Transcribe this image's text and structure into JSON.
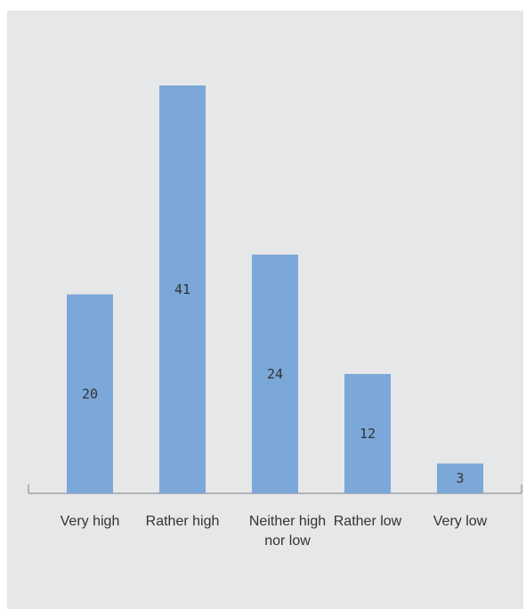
{
  "chart_data": {
    "type": "bar",
    "categories": [
      "Very high",
      "Rather high",
      "Neither high nor low",
      "Rather low",
      "Very low"
    ],
    "category_lines": [
      [
        "Very high"
      ],
      [
        "Rather high"
      ],
      [
        "Neither high",
        "nor low"
      ],
      [
        "Rather low"
      ],
      [
        "Very low"
      ]
    ],
    "values": [
      20,
      41,
      24,
      12,
      3
    ],
    "title": "",
    "xlabel": "",
    "ylabel": "",
    "ylim": [
      0,
      41
    ],
    "grid": false,
    "legend": "none",
    "bar_color": "#7ba7d9",
    "axis_color": "#7f7f7f",
    "background": "#e6e7e8"
  }
}
